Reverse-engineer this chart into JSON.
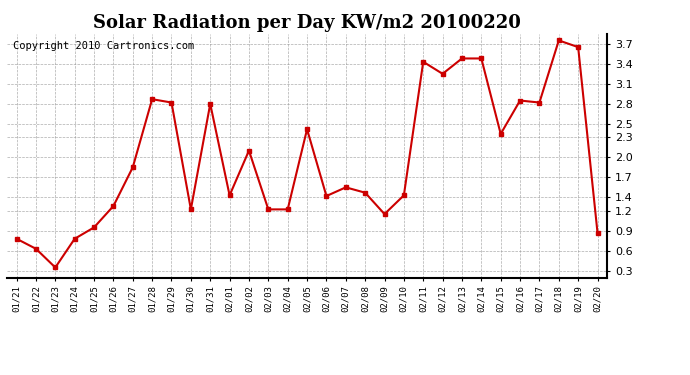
{
  "title": "Solar Radiation per Day KW/m2 20100220",
  "copyright": "Copyright 2010 Cartronics.com",
  "labels": [
    "01/21",
    "01/22",
    "01/23",
    "01/24",
    "01/25",
    "01/26",
    "01/27",
    "01/28",
    "01/29",
    "01/30",
    "01/31",
    "02/01",
    "02/02",
    "02/03",
    "02/04",
    "02/05",
    "02/06",
    "02/07",
    "02/08",
    "02/09",
    "02/10",
    "02/11",
    "02/12",
    "02/13",
    "02/14",
    "02/15",
    "02/16",
    "02/17",
    "02/18",
    "02/19",
    "02/20"
  ],
  "values": [
    0.78,
    0.63,
    0.35,
    0.78,
    0.95,
    1.27,
    1.85,
    2.87,
    2.82,
    1.22,
    2.8,
    1.43,
    2.1,
    1.22,
    1.22,
    2.42,
    1.42,
    1.55,
    1.47,
    1.15,
    1.43,
    3.43,
    3.25,
    3.48,
    3.48,
    2.35,
    2.85,
    2.82,
    3.75,
    3.65,
    0.87
  ],
  "line_color": "#cc0000",
  "marker_color": "#cc0000",
  "bg_color": "#ffffff",
  "grid_color": "#999999",
  "ylim": [
    0.2,
    3.85
  ],
  "yticks": [
    0.3,
    0.6,
    0.9,
    1.2,
    1.4,
    1.7,
    2.0,
    2.3,
    2.5,
    2.8,
    3.1,
    3.4,
    3.7
  ],
  "title_fontsize": 13,
  "copyright_fontsize": 7.5
}
